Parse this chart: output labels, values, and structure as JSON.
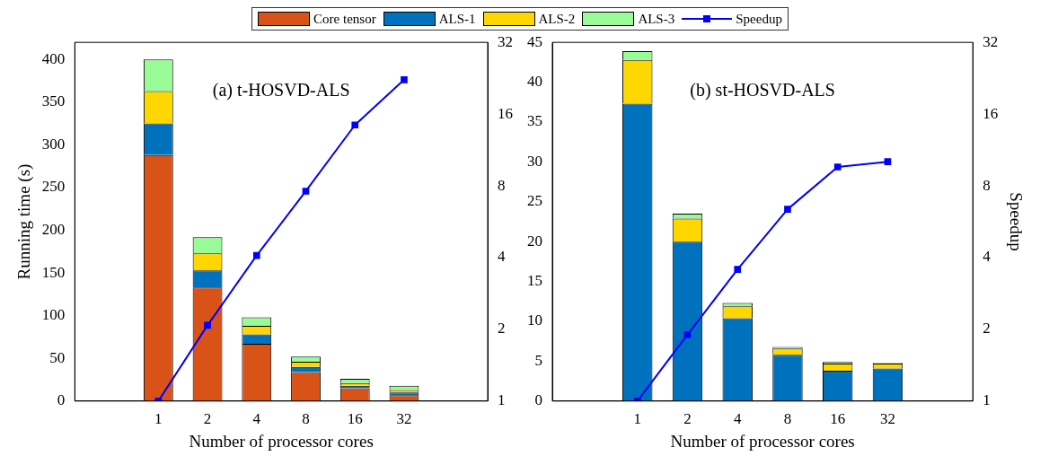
{
  "chart_data": [
    {
      "type": "bar",
      "stacked": true,
      "xlabel": "Number of processor cores",
      "ylabel": "Running time (s)",
      "annotations": [
        "(a) t-HOSVD-ALS"
      ],
      "categories": [
        "1",
        "2",
        "4",
        "8",
        "16",
        "32"
      ],
      "ylim": [
        0,
        420
      ],
      "yticks": [
        0,
        50,
        100,
        150,
        200,
        250,
        300,
        350,
        400
      ],
      "y2lim": [
        1,
        32
      ],
      "y2ticks": [
        1,
        2,
        4,
        8,
        16,
        32
      ],
      "log": "y2",
      "grid": false,
      "legend": "top",
      "series": [
        {
          "name": "Core tensor",
          "color": "#d95319",
          "values": [
            288,
            133,
            67,
            34,
            15,
            7
          ]
        },
        {
          "name": "ALS-1",
          "color": "#0072bd",
          "values": [
            37,
            20,
            11,
            6,
            3,
            3
          ]
        },
        {
          "name": "ALS-2",
          "color": "#ffd700",
          "values": [
            38,
            20,
            10,
            6,
            3,
            3
          ]
        },
        {
          "name": "ALS-3",
          "color": "#98fb98",
          "values": [
            37,
            19,
            10,
            6,
            5,
            5
          ]
        },
        {
          "name": "Speedup",
          "type": "line",
          "axis": "y2",
          "marker": "square",
          "line_style": "solid",
          "color": "#0000ff",
          "values": [
            1,
            2.08,
            4.08,
            7.6,
            14.4,
            22.3
          ]
        }
      ]
    },
    {
      "type": "bar",
      "stacked": true,
      "xlabel": "Number of processor cores",
      "y2label": "Speedup",
      "annotations": [
        "(b) st-HOSVD-ALS"
      ],
      "categories": [
        "1",
        "2",
        "4",
        "8",
        "16",
        "32"
      ],
      "ylim": [
        0,
        45
      ],
      "yticks": [
        0,
        5,
        10,
        15,
        20,
        25,
        30,
        35,
        40,
        45
      ],
      "y2lim": [
        1,
        32
      ],
      "y2ticks": [
        1,
        2,
        4,
        8,
        16,
        32
      ],
      "log": "y2",
      "grid": false,
      "series": [
        {
          "color": "#d95319",
          "values": [
            0,
            0,
            0,
            0,
            0,
            0
          ]
        },
        {
          "color": "#0072bd",
          "values": [
            37.3,
            20,
            10.4,
            5.8,
            3.8,
            4.1
          ]
        },
        {
          "color": "#ffd700",
          "values": [
            5.5,
            2.9,
            1.5,
            0.8,
            0.9,
            0.6
          ]
        },
        {
          "color": "#98fb98",
          "values": [
            1.1,
            0.6,
            0.4,
            0.2,
            0.2,
            0.1
          ]
        },
        {
          "type": "line",
          "axis": "y2",
          "marker": "square",
          "line_style": "solid",
          "color": "#0000ff",
          "values": [
            1,
            1.9,
            3.57,
            6.38,
            9.6,
            10.1
          ]
        }
      ]
    }
  ]
}
